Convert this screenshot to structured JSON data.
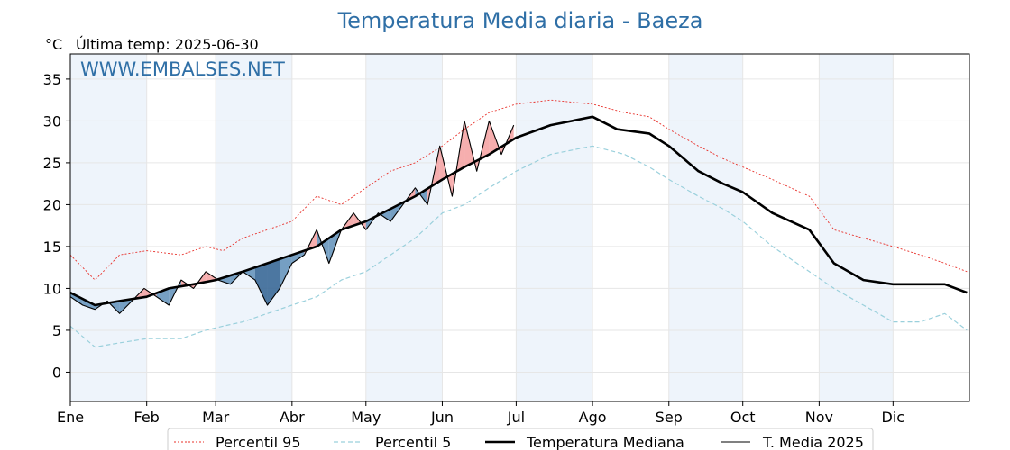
{
  "chart_data": {
    "type": "line",
    "title": "Temperatura Media diaria - Baeza",
    "unit": "°C",
    "subtitle": "Última temp: 2025-06-30",
    "watermark": "WWW.EMBALSES.NET",
    "xlim": [
      0,
      365
    ],
    "ylim": [
      -3.5,
      38
    ],
    "y_ticks": [
      "0",
      "5",
      "10",
      "15",
      "20",
      "25",
      "30",
      "35"
    ],
    "y_tick_values": [
      0,
      5,
      10,
      15,
      20,
      25,
      30,
      35
    ],
    "months": [
      "Ene",
      "Feb",
      "Mar",
      "Abr",
      "May",
      "Jun",
      "Jul",
      "Ago",
      "Sep",
      "Oct",
      "Nov",
      "Dic"
    ],
    "month_starts": [
      0,
      31,
      59,
      90,
      120,
      151,
      181,
      212,
      243,
      273,
      304,
      334
    ],
    "grid": true,
    "shaded_months": [
      0,
      2,
      4,
      6,
      8,
      10
    ],
    "legend_position": "bottom",
    "colors": {
      "p95": "#e8302a",
      "p5": "#9ad0dc",
      "median": "#000000",
      "current": "#000000",
      "above": "#f5a0a0",
      "above_strong": "#e8605e",
      "below": "#5f8fb8",
      "below_strong": "#2f6090",
      "band": "#eef4fb"
    },
    "series": [
      {
        "name": "Percentil 95",
        "key": "p95",
        "points": [
          [
            0,
            14
          ],
          [
            10,
            11
          ],
          [
            20,
            14
          ],
          [
            31,
            14.5
          ],
          [
            45,
            14
          ],
          [
            55,
            15
          ],
          [
            62,
            14.5
          ],
          [
            70,
            16
          ],
          [
            80,
            17
          ],
          [
            90,
            18
          ],
          [
            100,
            21
          ],
          [
            110,
            20
          ],
          [
            120,
            22
          ],
          [
            130,
            24
          ],
          [
            140,
            25
          ],
          [
            151,
            27
          ],
          [
            160,
            29
          ],
          [
            170,
            31
          ],
          [
            181,
            32
          ],
          [
            195,
            32.5
          ],
          [
            212,
            32
          ],
          [
            225,
            31
          ],
          [
            235,
            30.5
          ],
          [
            243,
            29
          ],
          [
            255,
            27
          ],
          [
            265,
            25.5
          ],
          [
            273,
            24.5
          ],
          [
            285,
            23
          ],
          [
            300,
            21
          ],
          [
            310,
            17
          ],
          [
            322,
            16
          ],
          [
            334,
            15
          ],
          [
            345,
            14
          ],
          [
            355,
            13
          ],
          [
            364,
            12
          ]
        ]
      },
      {
        "name": "Percentil 5",
        "key": "p5",
        "points": [
          [
            0,
            5.5
          ],
          [
            10,
            3
          ],
          [
            20,
            3.5
          ],
          [
            31,
            4
          ],
          [
            45,
            4
          ],
          [
            55,
            5
          ],
          [
            62,
            5.5
          ],
          [
            70,
            6
          ],
          [
            80,
            7
          ],
          [
            90,
            8
          ],
          [
            100,
            9
          ],
          [
            110,
            11
          ],
          [
            120,
            12
          ],
          [
            130,
            14
          ],
          [
            140,
            16
          ],
          [
            151,
            19
          ],
          [
            160,
            20
          ],
          [
            170,
            22
          ],
          [
            181,
            24
          ],
          [
            195,
            26
          ],
          [
            212,
            27
          ],
          [
            225,
            26
          ],
          [
            235,
            24.5
          ],
          [
            243,
            23
          ],
          [
            255,
            21
          ],
          [
            265,
            19.5
          ],
          [
            273,
            18
          ],
          [
            285,
            15
          ],
          [
            300,
            12
          ],
          [
            310,
            10
          ],
          [
            322,
            8
          ],
          [
            334,
            6
          ],
          [
            345,
            6
          ],
          [
            355,
            7
          ],
          [
            364,
            5
          ]
        ]
      },
      {
        "name": "Temperatura Mediana",
        "key": "median",
        "points": [
          [
            0,
            9.5
          ],
          [
            10,
            8
          ],
          [
            20,
            8.5
          ],
          [
            31,
            9
          ],
          [
            40,
            10
          ],
          [
            50,
            10.5
          ],
          [
            59,
            11
          ],
          [
            70,
            12
          ],
          [
            80,
            13
          ],
          [
            90,
            14
          ],
          [
            100,
            15
          ],
          [
            110,
            17
          ],
          [
            120,
            18
          ],
          [
            130,
            19.5
          ],
          [
            140,
            21
          ],
          [
            151,
            23
          ],
          [
            160,
            24.5
          ],
          [
            170,
            26
          ],
          [
            181,
            28
          ],
          [
            195,
            29.5
          ],
          [
            212,
            30.5
          ],
          [
            222,
            29
          ],
          [
            235,
            28.5
          ],
          [
            243,
            27
          ],
          [
            255,
            24
          ],
          [
            265,
            22.5
          ],
          [
            273,
            21.5
          ],
          [
            285,
            19
          ],
          [
            300,
            17
          ],
          [
            310,
            13
          ],
          [
            322,
            11
          ],
          [
            334,
            10.5
          ],
          [
            345,
            10.5
          ],
          [
            355,
            10.5
          ],
          [
            364,
            9.5
          ]
        ]
      },
      {
        "name": "T. Media 2025",
        "key": "current",
        "points": [
          [
            0,
            9
          ],
          [
            5,
            8
          ],
          [
            10,
            7.5
          ],
          [
            15,
            8.5
          ],
          [
            20,
            7
          ],
          [
            25,
            8.5
          ],
          [
            30,
            10
          ],
          [
            35,
            9
          ],
          [
            40,
            8
          ],
          [
            45,
            11
          ],
          [
            50,
            10
          ],
          [
            55,
            12
          ],
          [
            60,
            11
          ],
          [
            65,
            10.5
          ],
          [
            70,
            12
          ],
          [
            75,
            11
          ],
          [
            80,
            8
          ],
          [
            85,
            10
          ],
          [
            90,
            13
          ],
          [
            95,
            14
          ],
          [
            100,
            17
          ],
          [
            105,
            13
          ],
          [
            110,
            17
          ],
          [
            115,
            19
          ],
          [
            120,
            17
          ],
          [
            125,
            19
          ],
          [
            130,
            18
          ],
          [
            135,
            20
          ],
          [
            140,
            22
          ],
          [
            145,
            20
          ],
          [
            150,
            27
          ],
          [
            155,
            21
          ],
          [
            160,
            30
          ],
          [
            165,
            24
          ],
          [
            170,
            30
          ],
          [
            175,
            26
          ],
          [
            180,
            29.5
          ]
        ]
      }
    ]
  }
}
